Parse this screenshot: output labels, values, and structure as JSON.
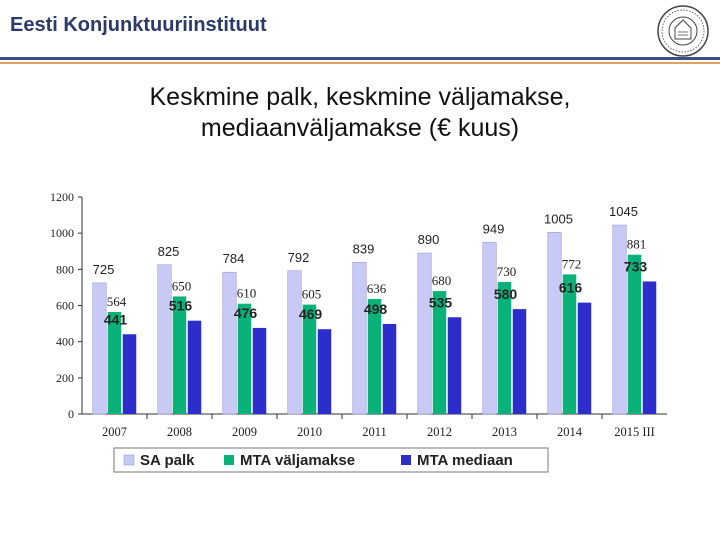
{
  "header": {
    "org_name": "Eesti Konjunktuuriinstituut"
  },
  "slide": {
    "title_line1": "Keskmine palk, keskmine väljamakse,",
    "title_line2": "mediaanväljamakse (€ kuus)"
  },
  "colors": {
    "header_text": "#2b3a6b",
    "header_rule": "#3b4f86",
    "header_rule_accent": "#e0a060",
    "sa_palk": "#c9c9f5",
    "mta_valjamakse": "#0ab27a",
    "mta_mediaan": "#2d2dcc"
  },
  "chart_data": {
    "type": "bar",
    "categories": [
      "2007",
      "2008",
      "2009",
      "2010",
      "2011",
      "2012",
      "2013",
      "2014",
      "2015 III"
    ],
    "series": [
      {
        "name": "SA palk",
        "values": [
          725,
          825,
          784,
          792,
          839,
          890,
          949,
          1005,
          1045
        ],
        "color": "#c9c9f5"
      },
      {
        "name": "MTA väljamakse",
        "values": [
          564,
          650,
          610,
          605,
          636,
          680,
          730,
          772,
          881
        ],
        "color": "#0ab27a"
      },
      {
        "name": "MTA mediaan",
        "values": [
          441,
          516,
          476,
          469,
          498,
          535,
          580,
          616,
          733
        ],
        "color": "#2d2dcc"
      }
    ],
    "yticks": [
      "0",
      "200",
      "400",
      "600",
      "800",
      "1000",
      "1200"
    ],
    "ylim": [
      0,
      1200
    ],
    "grid": false,
    "legend_position": "bottom"
  }
}
